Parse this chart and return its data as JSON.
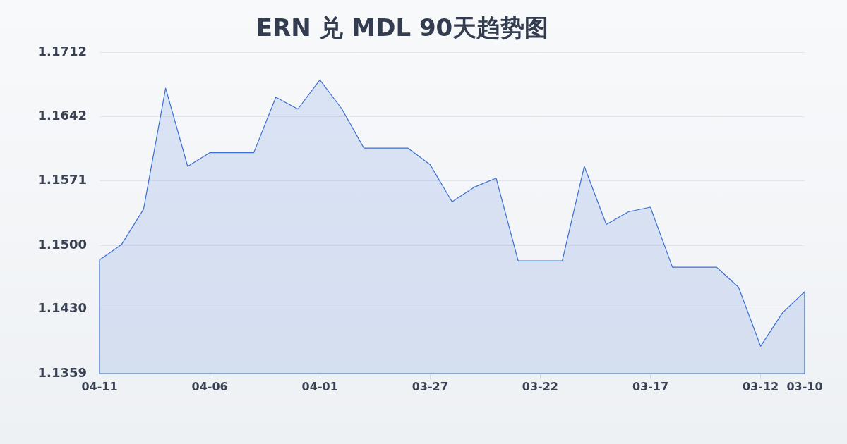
{
  "chart_data": {
    "type": "area",
    "title": "ERN 兑 MDL 90天趋势图",
    "categories": [
      "04-11",
      null,
      null,
      null,
      null,
      "04-06",
      null,
      null,
      null,
      null,
      "04-01",
      null,
      null,
      null,
      null,
      "03-27",
      null,
      null,
      null,
      null,
      "03-22",
      null,
      null,
      null,
      null,
      "03-17",
      null,
      null,
      null,
      null,
      "03-12",
      null,
      "03-10"
    ],
    "series": [
      {
        "color": "#3b6fd4",
        "values": [
          1.1484,
          1.1501,
          1.154,
          1.1673,
          1.1587,
          1.1602,
          1.1602,
          1.1602,
          1.1663,
          1.165,
          1.1682,
          1.165,
          1.1607,
          1.1607,
          1.1607,
          1.1589,
          1.1548,
          1.1564,
          1.1574,
          1.1483,
          1.1483,
          1.1483,
          1.1587,
          1.1523,
          1.1537,
          1.1542,
          1.1476,
          1.1476,
          1.1476,
          1.1454,
          1.1389,
          1.1426,
          1.1449
        ]
      }
    ],
    "ylim": [
      1.1359,
      1.1712
    ],
    "yticks": [
      1.1359,
      {
        "value": 1.143,
        "label": "1.1430"
      },
      {
        "value": 1.15,
        "label": "1.1500"
      },
      1.1571,
      1.1642,
      1.1712
    ],
    "grid": "y",
    "marker": "none",
    "line_style": "solid"
  }
}
